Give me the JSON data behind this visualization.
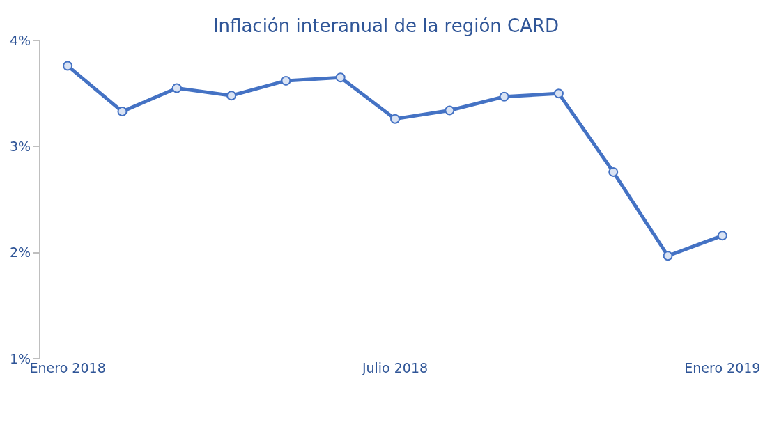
{
  "chart_data": {
    "type": "line",
    "title": "Inflación interanual de la región CARD",
    "categories": [
      "Enero 2018",
      null,
      null,
      null,
      null,
      null,
      "Julio 2018",
      null,
      null,
      null,
      null,
      null,
      "Enero 2019"
    ],
    "series": [
      {
        "color": "#4472c4",
        "values": [
          3.76,
          3.33,
          3.55,
          3.48,
          3.62,
          3.65,
          3.26,
          3.34,
          3.47,
          3.5,
          2.76,
          1.97,
          2.16
        ]
      }
    ],
    "ylim": [
      1,
      4
    ],
    "yticks": [
      {
        "value": 1,
        "label": "1%"
      },
      {
        "value": 2,
        "label": "2%"
      },
      {
        "value": 3,
        "label": "3%"
      },
      {
        "value": 4,
        "label": "4%"
      }
    ],
    "grid": false,
    "marker": "circle",
    "line_style": "solid"
  }
}
